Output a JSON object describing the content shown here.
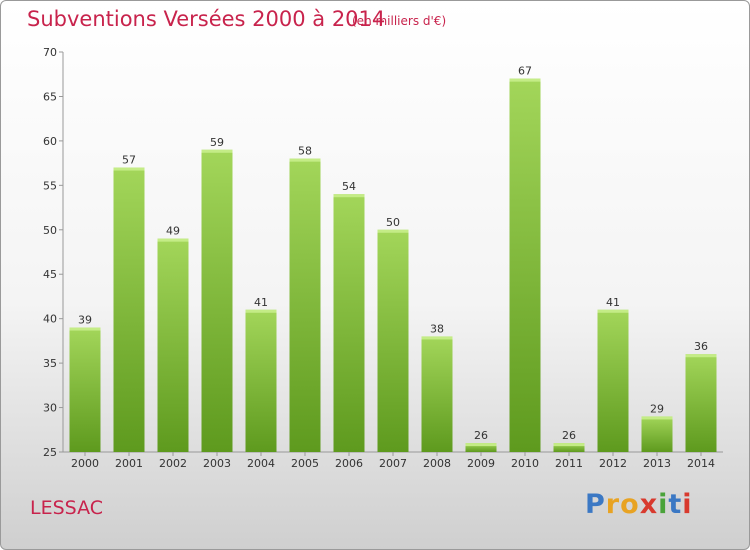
{
  "chart_data": {
    "type": "bar",
    "title": "Subventions Versées 2000 à 2014",
    "subtitle": "(en milliers d'€)",
    "categories": [
      "2000",
      "2001",
      "2002",
      "2003",
      "2004",
      "2005",
      "2006",
      "2007",
      "2008",
      "2009",
      "2010",
      "2011",
      "2012",
      "2013",
      "2014"
    ],
    "values": [
      39,
      57,
      49,
      59,
      41,
      58,
      54,
      50,
      38,
      26,
      67,
      26,
      41,
      29,
      36
    ],
    "ylim": [
      25,
      70
    ],
    "yticks": [
      25,
      30,
      35,
      40,
      45,
      50,
      55,
      60,
      65,
      70
    ],
    "grid": false,
    "bar_color_top": "#a3d65a",
    "bar_color_bottom": "#5e9a1e"
  },
  "footer": {
    "commune": "LESSAC",
    "logo_letters": [
      {
        "ch": "P",
        "color": "#3b78c4"
      },
      {
        "ch": "r",
        "color": "#e8a323"
      },
      {
        "ch": "o",
        "color": "#e8a323"
      },
      {
        "ch": "x",
        "color": "#d83a2e"
      },
      {
        "ch": "i",
        "color": "#4aa33a"
      },
      {
        "ch": "t",
        "color": "#3b78c4"
      },
      {
        "ch": "i",
        "color": "#d83a2e"
      }
    ]
  }
}
